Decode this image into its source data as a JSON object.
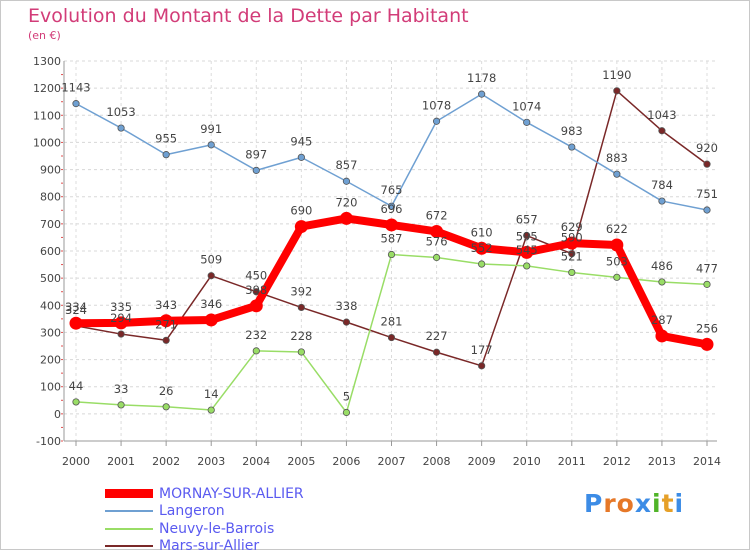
{
  "header": {
    "title": "Evolution du Montant de la Dette par Habitant",
    "unit": "(en €)"
  },
  "brand": {
    "logo": "Proxiti",
    "letters": [
      "P",
      "r",
      "o",
      "x",
      "i",
      "t",
      "i"
    ],
    "colors": [
      "#3c8ce6",
      "#e67828",
      "#e67828",
      "#3c8ce6",
      "#50b428",
      "#e6a028",
      "#3c8ce6"
    ]
  },
  "chart_data": {
    "type": "line",
    "title": "Evolution du Montant de la Dette par Habitant",
    "ylabel": "(en €)",
    "xlabel": "",
    "x": [
      "2000",
      "2001",
      "2002",
      "2003",
      "2004",
      "2005",
      "2006",
      "2007",
      "2008",
      "2009",
      "2010",
      "2011",
      "2012",
      "2013",
      "2014"
    ],
    "ylim": [
      -100,
      1300
    ],
    "yticks": [
      "-100",
      "0",
      "100",
      "200",
      "300",
      "400",
      "500",
      "600",
      "700",
      "800",
      "900",
      "1000",
      "1100",
      "1200",
      "1300"
    ],
    "grid": "horizontal dashed",
    "legend_position": "bottom-left",
    "series": [
      {
        "name": "MORNAY-SUR-ALLIER",
        "color": "#ff0000",
        "values": [
          334,
          335,
          343,
          346,
          398,
          690,
          720,
          696,
          672,
          610,
          595,
          629,
          622,
          287,
          256
        ]
      },
      {
        "name": "Langeron",
        "color": "#6fa0d2",
        "values": [
          1143,
          1053,
          955,
          991,
          897,
          945,
          857,
          765,
          1078,
          1178,
          1074,
          983,
          883,
          784,
          751
        ]
      },
      {
        "name": "Neuvy-le-Barrois",
        "color": "#99dd66",
        "values": [
          44,
          33,
          26,
          14,
          232,
          228,
          5,
          587,
          576,
          552,
          545,
          521,
          503,
          486,
          477
        ]
      },
      {
        "name": "Mars-sur-Allier",
        "color": "#7a2828",
        "values": [
          324,
          294,
          271,
          509,
          450,
          392,
          338,
          281,
          227,
          177,
          657,
          590,
          1190,
          1043,
          920
        ]
      }
    ]
  }
}
